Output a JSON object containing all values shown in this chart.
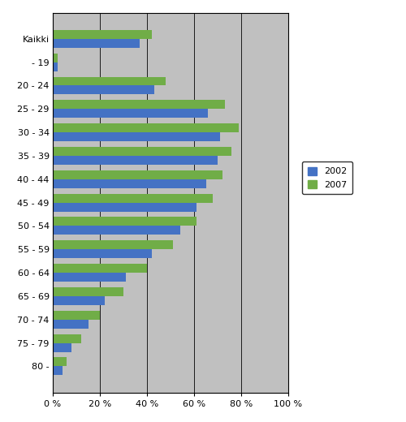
{
  "categories": [
    "Kaikki",
    "- 19",
    "20 - 24",
    "25 - 29",
    "30 - 34",
    "35 - 39",
    "40 - 44",
    "45 - 49",
    "50 - 54",
    "55 - 59",
    "60 - 64",
    "65 - 69",
    "70 - 74",
    "75 - 79",
    "80 -"
  ],
  "values_2002": [
    37,
    2,
    43,
    66,
    71,
    70,
    65,
    61,
    54,
    42,
    31,
    22,
    15,
    8,
    4
  ],
  "values_2007": [
    42,
    2,
    48,
    73,
    79,
    76,
    72,
    68,
    61,
    51,
    40,
    30,
    20,
    12,
    6
  ],
  "color_2002": "#4472C4",
  "color_2007": "#70AD47",
  "plot_bg_color": "#C0C0C0",
  "fig_bg_color": "#ffffff",
  "xlim": [
    0,
    100
  ],
  "xticks": [
    0,
    20,
    40,
    60,
    80,
    100
  ],
  "xticklabels": [
    "0 %",
    "20 %",
    "40 %",
    "60 %",
    "80 %",
    "100 %"
  ],
  "legend_labels": [
    "2002",
    "2007"
  ],
  "bar_height": 0.38,
  "figsize": [
    5.0,
    5.2
  ],
  "dpi": 100
}
